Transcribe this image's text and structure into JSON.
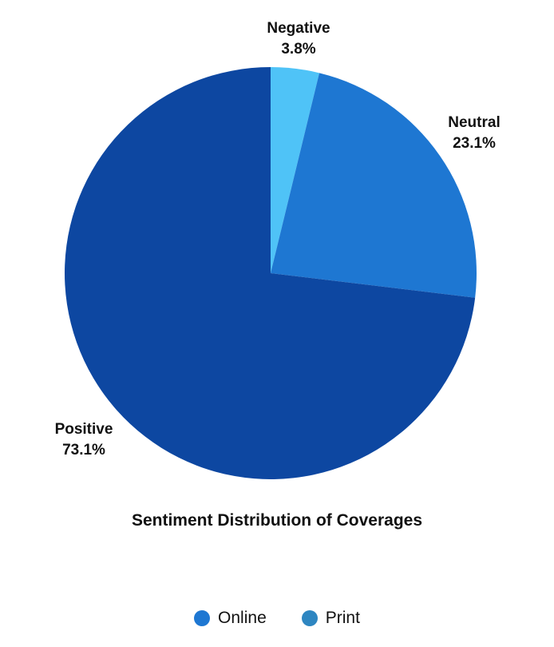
{
  "chart_data": {
    "type": "pie",
    "title": "Sentiment Distribution of Coverages",
    "slices": [
      {
        "name": "Negative",
        "value": 3.8,
        "label": "3.8%",
        "color": "#4fc3f7"
      },
      {
        "name": "Neutral",
        "value": 23.1,
        "label": "23.1%",
        "color": "#1e77d2"
      },
      {
        "name": "Positive",
        "value": 73.1,
        "label": "73.1%",
        "color": "#0d47a1"
      }
    ],
    "legend": {
      "placement": "bottom",
      "items": [
        {
          "name": "Online",
          "color": "#1e77d2"
        },
        {
          "name": "Print",
          "color": "#2e86c1"
        }
      ]
    }
  }
}
